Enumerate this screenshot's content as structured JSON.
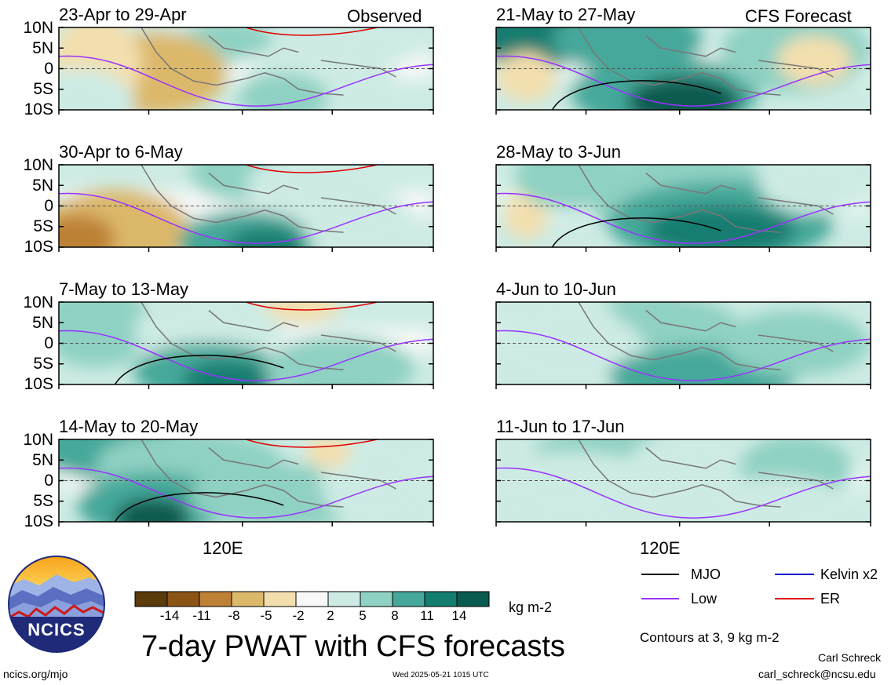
{
  "chart_data": {
    "type": "heatmap",
    "title": "7-day PWAT with CFS forecasts",
    "colorbar": {
      "unit": "kg m-2",
      "levels": [
        -14,
        -11,
        -8,
        -5,
        -2,
        2,
        5,
        8,
        11,
        14
      ],
      "colors": [
        "#5b3a0c",
        "#8a5514",
        "#bd8136",
        "#dcb86a",
        "#f3dfae",
        "#f8f8f8",
        "#cdebe4",
        "#8fd1c3",
        "#45a89a",
        "#137d70",
        "#0b5a50"
      ]
    },
    "latitude_ticks": [
      "10N",
      "5N",
      "0",
      "5S",
      "10S"
    ],
    "longitude_tick": "120E",
    "legend": [
      {
        "name": "MJO",
        "color": "#000000"
      },
      {
        "name": "Kelvin x2",
        "color": "#0000cc"
      },
      {
        "name": "Low",
        "color": "#9933ff"
      },
      {
        "name": "ER",
        "color": "#e00000"
      }
    ],
    "contour_note": "Contours at 3, 9 kg m-2",
    "observed_label": "Observed",
    "forecast_label": "CFS Forecast",
    "panels": [
      {
        "period": "23-Apr to 29-Apr",
        "kind": "observed"
      },
      {
        "period": "30-Apr to 6-May",
        "kind": "observed"
      },
      {
        "period": "7-May to 13-May",
        "kind": "observed"
      },
      {
        "period": "14-May to 20-May",
        "kind": "observed"
      },
      {
        "period": "21-May to 27-May",
        "kind": "forecast"
      },
      {
        "period": "28-May to 3-Jun",
        "kind": "forecast"
      },
      {
        "period": "4-Jun to 10-Jun",
        "kind": "forecast"
      },
      {
        "period": "11-Jun to 17-Jun",
        "kind": "forecast"
      }
    ]
  },
  "logo": {
    "text": "NCICS"
  },
  "footer": {
    "url": "ncics.org/mjo",
    "timestamp": "Wed 2025-05-21 1015 UTC",
    "author": "Carl Schreck",
    "email": "carl_schreck@ncsu.edu"
  }
}
